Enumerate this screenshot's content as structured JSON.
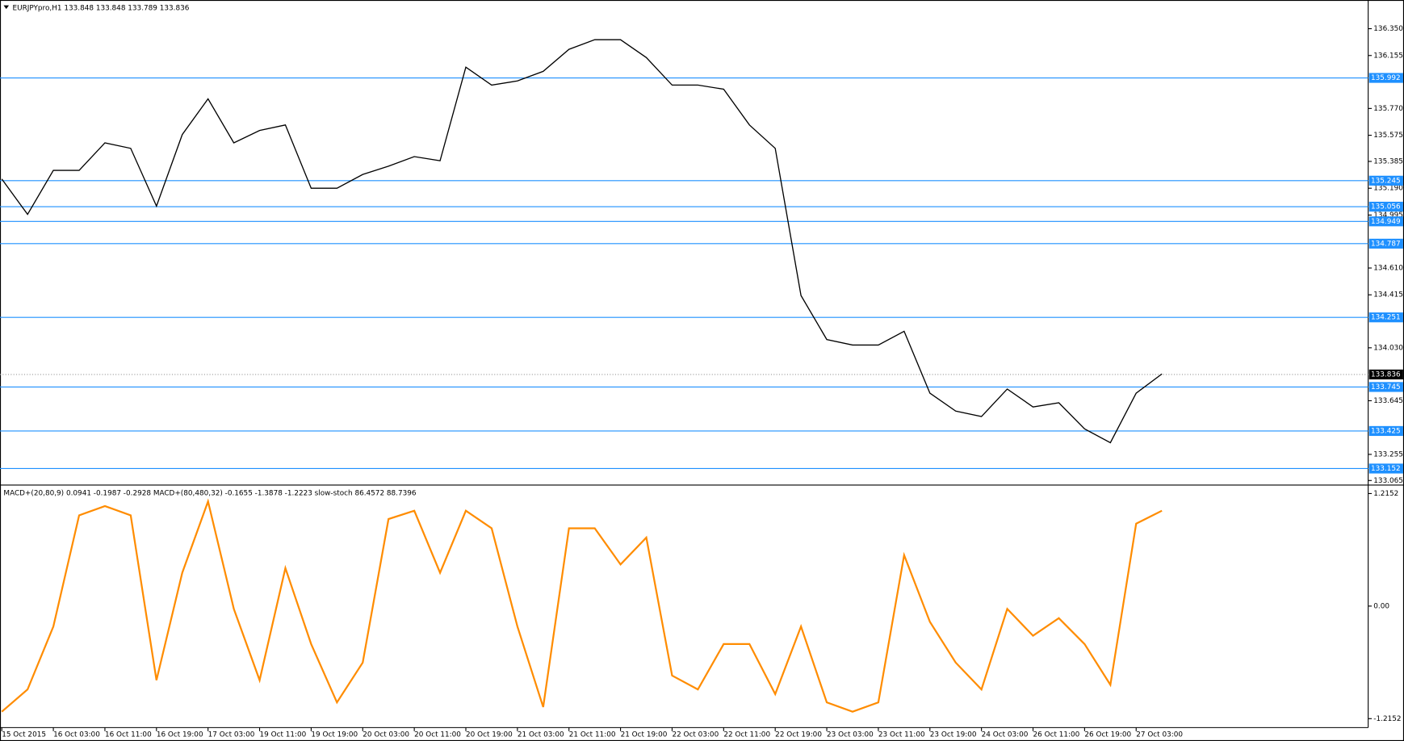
{
  "chart_data": [
    {
      "type": "line",
      "title": "EURJPYpro,H1  133.848 133.848 133.789 133.836",
      "x": [
        0,
        4,
        8,
        12,
        16,
        20,
        24,
        28,
        32,
        36,
        40,
        44,
        48,
        52,
        56,
        60,
        64,
        68,
        72,
        76,
        80,
        84,
        88,
        92,
        96,
        100,
        104,
        108,
        112,
        116,
        120,
        124,
        128,
        132,
        136,
        140,
        144,
        148,
        152,
        156,
        160,
        164,
        168,
        172,
        176,
        180
      ],
      "values": [
        135.257,
        135.0,
        135.32,
        135.32,
        135.52,
        135.48,
        135.06,
        135.58,
        135.84,
        135.52,
        135.61,
        135.65,
        135.19,
        135.19,
        135.29,
        135.35,
        135.42,
        135.39,
        136.07,
        135.94,
        135.97,
        136.04,
        136.2,
        136.27,
        136.27,
        136.14,
        135.94,
        135.94,
        135.91,
        135.65,
        135.48,
        134.41,
        134.09,
        134.05,
        134.05,
        134.15,
        133.7,
        133.57,
        133.53,
        133.73,
        133.6,
        133.63,
        133.44,
        133.34,
        133.7,
        133.84
      ],
      "color": "#000000",
      "xlim": [
        0,
        212
      ],
      "ylim": [
        133.045,
        136.526
      ],
      "yticks": [
        {
          "value": 136.35,
          "label": "136.350"
        },
        {
          "value": 136.155,
          "label": "136.155"
        },
        {
          "value": 135.77,
          "label": "135.770"
        },
        {
          "value": 135.575,
          "label": "135.575"
        },
        {
          "value": 135.385,
          "label": "135.385"
        },
        {
          "value": 135.19,
          "label": "135.190"
        },
        {
          "value": 134.995,
          "label": "134.995"
        },
        {
          "value": 134.61,
          "label": "134.610"
        },
        {
          "value": 134.415,
          "label": "134.415"
        },
        {
          "value": 134.03,
          "label": "134.030"
        },
        {
          "value": 133.645,
          "label": "133.645"
        },
        {
          "value": 133.255,
          "label": "133.255"
        },
        {
          "value": 133.065,
          "label": "133.065"
        }
      ],
      "levels": [
        135.992,
        135.245,
        135.056,
        134.949,
        134.787,
        134.251,
        133.745,
        133.425,
        133.152
      ],
      "level_color": "#1e90ff",
      "last_price": 133.836
    },
    {
      "type": "line",
      "title": "MACD+(20,80,9) 0.0941 -0.1987 -0.2928  MACD+(80,480,32) -0.1655 -1.3878 -1.2223  slow-stoch 86.4572 88.7396",
      "x": [
        0,
        4,
        8,
        12,
        16,
        20,
        24,
        28,
        32,
        36,
        40,
        44,
        48,
        52,
        56,
        60,
        64,
        68,
        72,
        76,
        80,
        84,
        88,
        92,
        96,
        100,
        104,
        108,
        112,
        116,
        120,
        124,
        128,
        132,
        136,
        140,
        144,
        148,
        152,
        156,
        160,
        164,
        168,
        172,
        176,
        180
      ],
      "values": [
        -1.14,
        -0.9,
        -0.22,
        0.98,
        1.08,
        0.98,
        -0.8,
        0.36,
        1.13,
        -0.03,
        -0.8,
        0.41,
        -0.41,
        -1.04,
        -0.61,
        0.94,
        1.03,
        0.36,
        1.03,
        0.84,
        -0.22,
        -1.09,
        0.84,
        0.84,
        0.45,
        0.74,
        -0.75,
        -0.9,
        -0.41,
        -0.41,
        -0.95,
        -0.22,
        -1.04,
        -1.14,
        -1.04,
        0.55,
        -0.17,
        -0.61,
        -0.9,
        -0.03,
        -0.32,
        -0.13,
        -0.41,
        -0.85,
        0.89,
        1.03
      ],
      "color": "#ff8c00",
      "xlim": [
        0,
        212
      ],
      "ylim": [
        -1.302,
        1.278
      ],
      "yticks": [
        {
          "value": 1.2152,
          "label": "1.2152"
        },
        {
          "value": 0,
          "label": "0.00"
        },
        {
          "value": -1.2152,
          "label": "-1.2152"
        }
      ],
      "xticks": [
        {
          "value": 0,
          "label": "15 Oct 2015"
        },
        {
          "value": 8,
          "label": "16 Oct 03:00"
        },
        {
          "value": 16,
          "label": "16 Oct 11:00"
        },
        {
          "value": 24,
          "label": "16 Oct 19:00"
        },
        {
          "value": 32,
          "label": "17 Oct 03:00"
        },
        {
          "value": 40,
          "label": "19 Oct 11:00"
        },
        {
          "value": 48,
          "label": "19 Oct 19:00"
        },
        {
          "value": 56,
          "label": "20 Oct 03:00"
        },
        {
          "value": 64,
          "label": "20 Oct 11:00"
        },
        {
          "value": 72,
          "label": "20 Oct 19:00"
        },
        {
          "value": 80,
          "label": "21 Oct 03:00"
        },
        {
          "value": 88,
          "label": "21 Oct 11:00"
        },
        {
          "value": 96,
          "label": "21 Oct 19:00"
        },
        {
          "value": 104,
          "label": "22 Oct 03:00"
        },
        {
          "value": 112,
          "label": "22 Oct 11:00"
        },
        {
          "value": 120,
          "label": "22 Oct 19:00"
        },
        {
          "value": 128,
          "label": "23 Oct 03:00"
        },
        {
          "value": 136,
          "label": "23 Oct 11:00"
        },
        {
          "value": 144,
          "label": "23 Oct 19:00"
        },
        {
          "value": 152,
          "label": "24 Oct 03:00"
        },
        {
          "value": 160,
          "label": "26 Oct 11:00"
        },
        {
          "value": 168,
          "label": "26 Oct 19:00"
        },
        {
          "value": 176,
          "label": "27 Oct 03:00"
        }
      ]
    }
  ]
}
